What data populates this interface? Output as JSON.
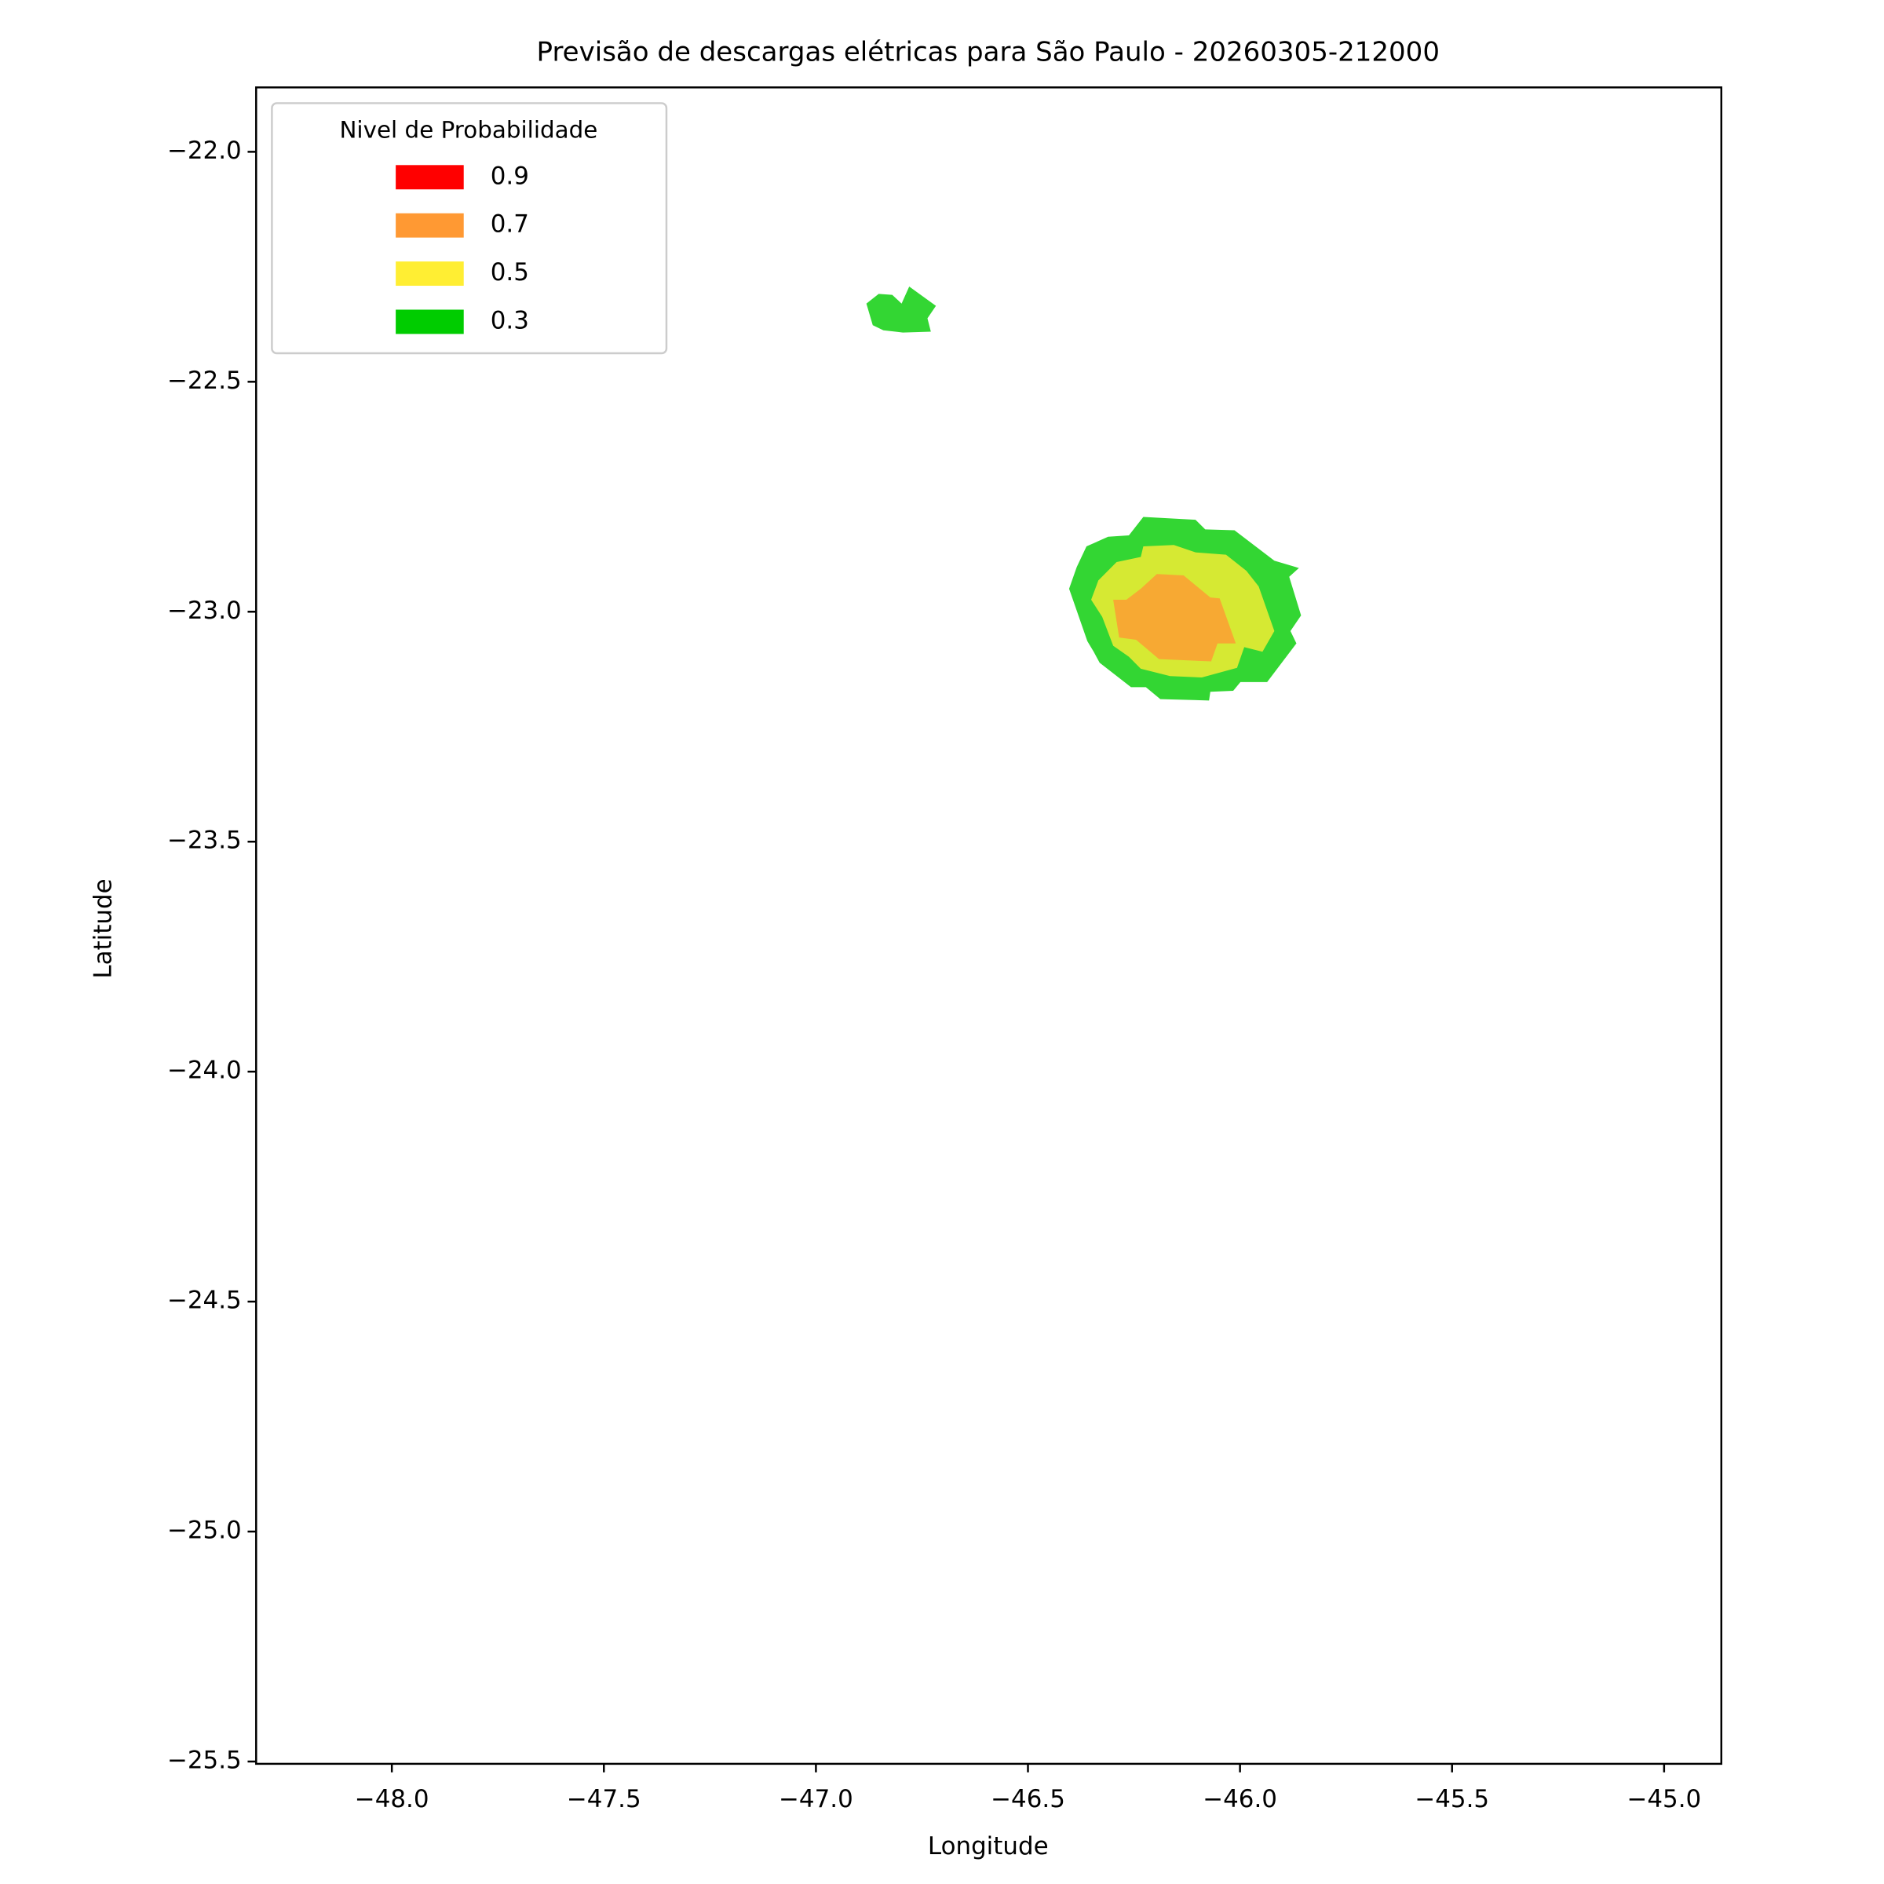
{
  "chart_data": {
    "type": "contour",
    "title": "Previsão de descargas elétricas para São Paulo - 20260305-212000",
    "x_label": "Longitude",
    "y_label": "Latitude",
    "legend_title": "Nivel de Probabilidade",
    "legend_position": "upper left",
    "alpha": 0.8,
    "xlim": [
      -48.32,
      -44.865
    ],
    "ylim": [
      -25.505,
      -21.86
    ],
    "xticks": [
      {
        "value": -48,
        "label": "−48.0"
      },
      {
        "value": -47.5,
        "label": "−47.5"
      },
      {
        "value": -47,
        "label": "−47.0"
      },
      {
        "value": -46.5,
        "label": "−46.5"
      },
      {
        "value": -46,
        "label": "−46.0"
      },
      {
        "value": -45.5,
        "label": "−45.5"
      },
      {
        "value": -45,
        "label": "−45.0"
      }
    ],
    "yticks": [
      {
        "value": -22,
        "label": "−22.0"
      },
      {
        "value": -22.5,
        "label": "−22.5"
      },
      {
        "value": -23,
        "label": "−23.0"
      },
      {
        "value": -23.5,
        "label": "−23.5"
      },
      {
        "value": -24,
        "label": "−24.0"
      },
      {
        "value": -24.5,
        "label": "−24.5"
      },
      {
        "value": -25,
        "label": "−25.0"
      },
      {
        "value": -25.5,
        "label": "−25.5"
      }
    ],
    "series": [
      {
        "name": "0.9",
        "color": "#ff0000",
        "polygons": []
      },
      {
        "name": "0.7",
        "color": "#ff9933",
        "polygons": [
          {
            "x": [
              -46.299,
              -46.268,
              -46.234,
              -46.196,
              -46.133,
              -46.07,
              -46.048,
              -46.01,
              -46.053,
              -46.068,
              -46.191,
              -46.245,
              -46.285
            ],
            "y": [
              -22.974,
              -22.974,
              -22.95,
              -22.918,
              -22.921,
              -22.969,
              -22.971,
              -23.069,
              -23.069,
              -23.108,
              -23.103,
              -23.061,
              -23.056
            ]
          }
        ]
      },
      {
        "name": "0.5",
        "color": "#ffee33",
        "polygons": [
          {
            "x": [
              -46.334,
              -46.291,
              -46.234,
              -46.228,
              -46.156,
              -46.105,
              -46.033,
              -45.985,
              -45.956,
              -45.919,
              -45.947,
              -45.99,
              -46.007,
              -46.09,
              -46.165,
              -46.234,
              -46.262,
              -46.299,
              -46.325,
              -46.351
            ],
            "y": [
              -22.932,
              -22.892,
              -22.881,
              -22.858,
              -22.855,
              -22.871,
              -22.876,
              -22.911,
              -22.945,
              -23.042,
              -23.087,
              -23.077,
              -23.122,
              -23.143,
              -23.14,
              -23.124,
              -23.098,
              -23.074,
              -23.011,
              -22.974
            ]
          }
        ]
      },
      {
        "name": "0.3",
        "color": "#00cc00",
        "polygons": [
          {
            "x": [
              -46.881,
              -46.852,
              -46.82,
              -46.798,
              -46.78,
              -46.717,
              -46.737,
              -46.729,
              -46.795,
              -46.841,
              -46.866
            ],
            "y": [
              -22.33,
              -22.309,
              -22.311,
              -22.33,
              -22.293,
              -22.335,
              -22.362,
              -22.391,
              -22.393,
              -22.388,
              -22.377
            ]
          },
          {
            "x": [
              -46.385,
              -46.362,
              -46.311,
              -46.262,
              -46.228,
              -46.105,
              -46.082,
              -46.013,
              -45.919,
              -45.861,
              -45.884,
              -45.856,
              -45.881,
              -45.867,
              -45.936,
              -45.999,
              -46.016,
              -46.07,
              -46.073,
              -46.188,
              -46.222,
              -46.257,
              -46.331,
              -46.345,
              -46.36,
              -46.403
            ],
            "y": [
              -22.903,
              -22.858,
              -22.837,
              -22.834,
              -22.794,
              -22.8,
              -22.821,
              -22.823,
              -22.889,
              -22.905,
              -22.924,
              -23.008,
              -23.042,
              -23.069,
              -23.153,
              -23.153,
              -23.172,
              -23.174,
              -23.193,
              -23.19,
              -23.164,
              -23.164,
              -23.111,
              -23.087,
              -23.064,
              -22.95
            ]
          }
        ]
      }
    ]
  }
}
